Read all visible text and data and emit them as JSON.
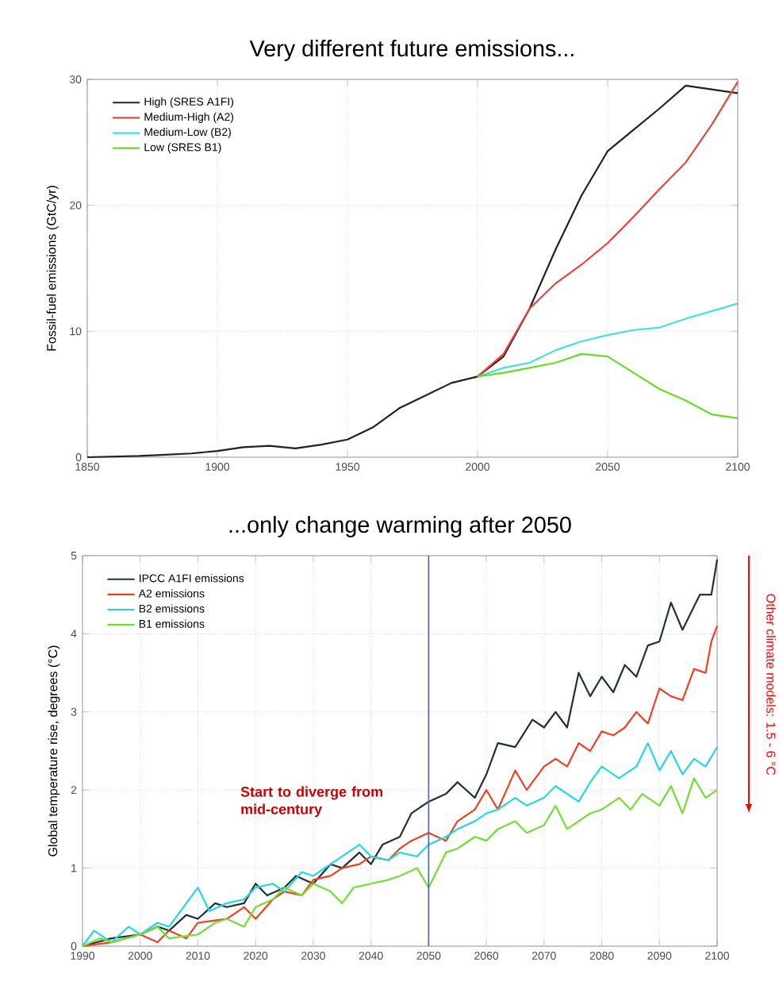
{
  "chart_data": [
    {
      "type": "line",
      "title": "Very different future emissions...",
      "ylabel": "Fossil-fuel emissions (GtC/yr)",
      "xlim": [
        1850,
        2100
      ],
      "ylim": [
        0,
        30
      ],
      "xticks": [
        1850,
        1900,
        1950,
        2000,
        2050,
        2100
      ],
      "yticks": [
        0,
        10,
        20,
        30
      ],
      "grid": true,
      "legend": "top left",
      "series": [
        {
          "name": "High (SRES A1FI)",
          "color": "#222222",
          "x": [
            1850,
            1870,
            1880,
            1890,
            1900,
            1910,
            1920,
            1930,
            1940,
            1950,
            1960,
            1970,
            1980,
            1990,
            2000,
            2010,
            2020,
            2030,
            2040,
            2050,
            2060,
            2070,
            2080,
            2090,
            2100
          ],
          "values": [
            0,
            0.1,
            0.2,
            0.3,
            0.5,
            0.8,
            0.9,
            0.7,
            1.0,
            1.4,
            2.4,
            3.9,
            4.9,
            5.9,
            6.4,
            8.0,
            11.8,
            16.5,
            20.8,
            24.3,
            26.0,
            27.7,
            29.5,
            29.2,
            28.9
          ]
        },
        {
          "name": "Medium-High (A2)",
          "color": "#e8453c",
          "x": [
            2000,
            2010,
            2020,
            2030,
            2040,
            2050,
            2060,
            2070,
            2080,
            2090,
            2100
          ],
          "values": [
            6.4,
            8.2,
            11.8,
            13.8,
            15.3,
            17.0,
            19.1,
            21.3,
            23.4,
            26.4,
            29.8
          ]
        },
        {
          "name": "Medium-Low (B2)",
          "color": "#40e0e0",
          "x": [
            2000,
            2010,
            2020,
            2030,
            2040,
            2050,
            2060,
            2070,
            2080,
            2090,
            2100
          ],
          "values": [
            6.4,
            7.1,
            7.5,
            8.5,
            9.2,
            9.7,
            10.1,
            10.3,
            11.0,
            11.6,
            12.2
          ]
        },
        {
          "name": "Low (SRES B1)",
          "color": "#66dd22",
          "x": [
            2000,
            2010,
            2020,
            2030,
            2040,
            2050,
            2060,
            2070,
            2080,
            2090,
            2100
          ],
          "values": [
            6.4,
            6.7,
            7.1,
            7.5,
            8.2,
            8.0,
            6.7,
            5.4,
            4.5,
            3.4,
            3.1
          ]
        }
      ]
    },
    {
      "type": "line",
      "title": "...only change warming after 2050",
      "ylabel": "Global temperature rise, degrees (°C)",
      "xlim": [
        1990,
        2100
      ],
      "ylim": [
        0,
        5
      ],
      "xticks": [
        1990,
        2000,
        2010,
        2020,
        2030,
        2040,
        2050,
        2060,
        2070,
        2080,
        2090,
        2100
      ],
      "yticks": [
        0,
        1,
        2,
        3,
        4,
        5
      ],
      "grid": true,
      "legend": "top left",
      "ref_lines": [
        {
          "axis": "x",
          "value": 2050,
          "color": "#5060b0"
        }
      ],
      "annotations": [
        "Start to diverge from mid-century",
        "Other climate models: 1.5 - 6 °C"
      ],
      "series": [
        {
          "name": "IPCC A1FI emissions",
          "color": "#1c3434",
          "x": [
            1990,
            1995,
            2000,
            2003,
            2005,
            2008,
            2010,
            2013,
            2015,
            2018,
            2020,
            2022,
            2025,
            2027,
            2030,
            2033,
            2035,
            2038,
            2040,
            2042,
            2045,
            2047,
            2050,
            2053,
            2055,
            2058,
            2060,
            2062,
            2065,
            2068,
            2070,
            2072,
            2074,
            2076,
            2078,
            2080,
            2082,
            2084,
            2086,
            2088,
            2090,
            2092,
            2094,
            2097,
            2099,
            2100
          ],
          "values": [
            0.0,
            0.1,
            0.15,
            0.25,
            0.2,
            0.4,
            0.35,
            0.55,
            0.5,
            0.55,
            0.8,
            0.65,
            0.75,
            0.9,
            0.8,
            1.05,
            1.0,
            1.2,
            1.05,
            1.3,
            1.4,
            1.7,
            1.85,
            1.95,
            2.1,
            1.9,
            2.2,
            2.6,
            2.55,
            2.9,
            2.8,
            3.0,
            2.8,
            3.5,
            3.2,
            3.45,
            3.25,
            3.6,
            3.45,
            3.85,
            3.9,
            4.4,
            4.05,
            4.5,
            4.5,
            4.95
          ]
        },
        {
          "name": "A2 emissions",
          "color": "#f04020",
          "x": [
            1990,
            1995,
            2000,
            2003,
            2005,
            2008,
            2010,
            2015,
            2018,
            2020,
            2023,
            2025,
            2028,
            2030,
            2033,
            2035,
            2038,
            2040,
            2043,
            2045,
            2047,
            2050,
            2053,
            2055,
            2058,
            2060,
            2062,
            2065,
            2067,
            2070,
            2072,
            2074,
            2076,
            2078,
            2080,
            2082,
            2084,
            2086,
            2088,
            2090,
            2092,
            2094,
            2096,
            2098,
            2099,
            2100
          ],
          "values": [
            0.0,
            0.05,
            0.15,
            0.05,
            0.2,
            0.1,
            0.3,
            0.35,
            0.5,
            0.35,
            0.6,
            0.7,
            0.65,
            0.85,
            0.9,
            1.0,
            1.05,
            1.15,
            1.1,
            1.25,
            1.35,
            1.45,
            1.35,
            1.6,
            1.75,
            2.0,
            1.75,
            2.25,
            2.0,
            2.3,
            2.4,
            2.3,
            2.6,
            2.5,
            2.75,
            2.7,
            2.8,
            3.0,
            2.85,
            3.3,
            3.2,
            3.15,
            3.55,
            3.5,
            3.9,
            4.1
          ]
        },
        {
          "name": "B2 emissions",
          "color": "#20d8e8",
          "x": [
            1990,
            1992,
            1995,
            1998,
            2000,
            2003,
            2005,
            2008,
            2010,
            2012,
            2015,
            2018,
            2020,
            2023,
            2025,
            2028,
            2030,
            2033,
            2035,
            2038,
            2040,
            2043,
            2045,
            2048,
            2050,
            2053,
            2055,
            2058,
            2060,
            2062,
            2065,
            2067,
            2070,
            2072,
            2074,
            2076,
            2078,
            2080,
            2083,
            2086,
            2088,
            2090,
            2092,
            2094,
            2096,
            2098,
            2100
          ],
          "values": [
            0.0,
            0.2,
            0.05,
            0.25,
            0.15,
            0.3,
            0.25,
            0.55,
            0.75,
            0.45,
            0.55,
            0.6,
            0.75,
            0.8,
            0.7,
            0.95,
            0.9,
            1.05,
            1.15,
            1.3,
            1.15,
            1.1,
            1.2,
            1.15,
            1.3,
            1.4,
            1.5,
            1.6,
            1.7,
            1.75,
            1.9,
            1.8,
            1.9,
            2.05,
            1.95,
            1.85,
            2.1,
            2.3,
            2.15,
            2.3,
            2.6,
            2.25,
            2.5,
            2.2,
            2.4,
            2.3,
            2.55
          ]
        },
        {
          "name": "B1 emissions",
          "color": "#70e030",
          "x": [
            1990,
            1993,
            1995,
            2000,
            2003,
            2005,
            2010,
            2013,
            2015,
            2018,
            2020,
            2023,
            2025,
            2028,
            2030,
            2033,
            2035,
            2037,
            2040,
            2043,
            2045,
            2048,
            2050,
            2053,
            2055,
            2058,
            2060,
            2062,
            2065,
            2067,
            2070,
            2072,
            2074,
            2076,
            2078,
            2080,
            2083,
            2085,
            2087,
            2090,
            2092,
            2094,
            2096,
            2098,
            2100
          ],
          "values": [
            0.0,
            0.1,
            0.05,
            0.15,
            0.25,
            0.1,
            0.15,
            0.3,
            0.35,
            0.25,
            0.5,
            0.6,
            0.75,
            0.65,
            0.8,
            0.7,
            0.55,
            0.75,
            0.8,
            0.85,
            0.9,
            1.0,
            0.75,
            1.2,
            1.25,
            1.4,
            1.35,
            1.5,
            1.6,
            1.45,
            1.55,
            1.8,
            1.5,
            1.6,
            1.7,
            1.75,
            1.9,
            1.75,
            1.95,
            1.8,
            2.05,
            1.7,
            2.15,
            1.9,
            2.0
          ]
        }
      ]
    }
  ]
}
